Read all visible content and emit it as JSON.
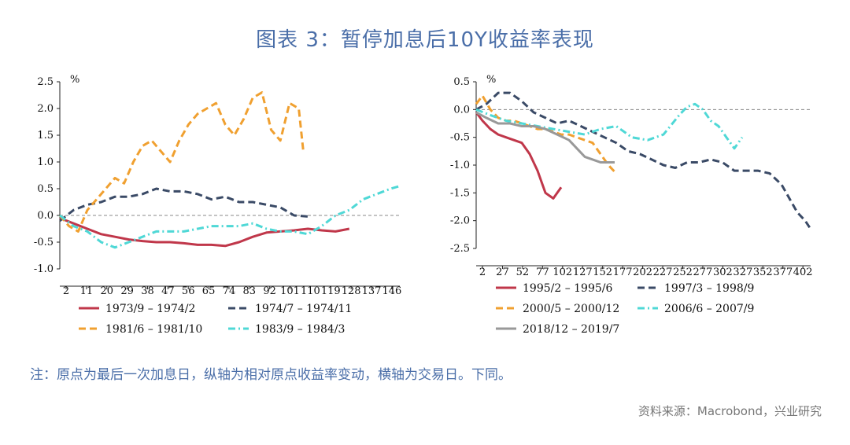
{
  "title": "图表 3：暂停加息后10Y收益率表现",
  "note": "注：原点为最后一次加息日，纵轴为相对原点收益率变动，横轴为交易日。下同。",
  "source": "资料来源：Macrobond，兴业研究",
  "colors": {
    "title": "#4a6ea8",
    "red": "#c0374a",
    "navy": "#3a4a66",
    "orange": "#f0a030",
    "cyan": "#4fd8d6",
    "gray": "#999999"
  },
  "chart_data": [
    {
      "type": "line",
      "unit": "%",
      "ylim": [
        -1.0,
        2.5
      ],
      "yticks": [
        "2.5",
        "2.0",
        "1.5",
        "1.0",
        "0.5",
        "0.0",
        "-0.5",
        "-1.0"
      ],
      "xticks": [
        "2",
        "11",
        "20",
        "29",
        "38",
        "47",
        "56",
        "65",
        "74",
        "83",
        "92",
        "101",
        "110",
        "119",
        "128",
        "137",
        "146"
      ],
      "xlim": [
        2,
        150
      ],
      "legend_position": "bottom",
      "series": [
        {
          "name": "1973/9 – 1974/2",
          "color": "#c0374a",
          "dash": "solid",
          "x": [
            2,
            8,
            14,
            20,
            26,
            32,
            38,
            44,
            50,
            56,
            62,
            68,
            74,
            80,
            86,
            92,
            98,
            104,
            110,
            116,
            122,
            128
          ],
          "y": [
            -0.05,
            -0.15,
            -0.25,
            -0.35,
            -0.4,
            -0.45,
            -0.48,
            -0.5,
            -0.5,
            -0.52,
            -0.55,
            -0.55,
            -0.57,
            -0.5,
            -0.4,
            -0.32,
            -0.3,
            -0.28,
            -0.25,
            -0.28,
            -0.3,
            -0.25
          ]
        },
        {
          "name": "1974/7 – 1974/11",
          "color": "#3a4a66",
          "dash": "dashed",
          "x": [
            2,
            8,
            14,
            20,
            26,
            32,
            38,
            44,
            50,
            56,
            62,
            68,
            74,
            80,
            86,
            92,
            98,
            104,
            110
          ],
          "y": [
            -0.1,
            0.1,
            0.2,
            0.25,
            0.35,
            0.35,
            0.4,
            0.5,
            0.45,
            0.45,
            0.4,
            0.3,
            0.35,
            0.25,
            0.25,
            0.2,
            0.15,
            0.0,
            -0.02
          ]
        },
        {
          "name": "1981/6 – 1981/10",
          "color": "#f0a030",
          "dash": "dashed",
          "x": [
            2,
            6,
            10,
            14,
            18,
            22,
            26,
            30,
            34,
            38,
            42,
            46,
            50,
            54,
            58,
            62,
            66,
            70,
            74,
            78,
            82,
            86,
            90,
            94,
            98,
            102,
            106,
            108
          ],
          "y": [
            0.0,
            -0.2,
            -0.3,
            0.1,
            0.3,
            0.5,
            0.7,
            0.6,
            1.0,
            1.3,
            1.4,
            1.2,
            1.0,
            1.4,
            1.7,
            1.9,
            2.0,
            2.1,
            1.7,
            1.5,
            1.8,
            2.2,
            2.3,
            1.6,
            1.4,
            2.1,
            2.0,
            1.2
          ]
        },
        {
          "name": "1983/9 – 1984/3",
          "color": "#4fd8d6",
          "dash": "dashdot",
          "x": [
            2,
            8,
            14,
            20,
            26,
            32,
            38,
            44,
            50,
            56,
            62,
            68,
            74,
            80,
            86,
            92,
            98,
            104,
            110,
            116,
            122,
            128,
            134,
            140,
            146,
            150
          ],
          "y": [
            0.0,
            -0.2,
            -0.3,
            -0.5,
            -0.6,
            -0.5,
            -0.4,
            -0.3,
            -0.3,
            -0.3,
            -0.25,
            -0.2,
            -0.2,
            -0.2,
            -0.15,
            -0.25,
            -0.3,
            -0.3,
            -0.35,
            -0.2,
            0.0,
            0.1,
            0.3,
            0.4,
            0.5,
            0.55
          ]
        }
      ]
    },
    {
      "type": "line",
      "unit": "%",
      "ylim": [
        -2.5,
        0.5
      ],
      "yticks": [
        "0.5",
        "0.0",
        "-0.5",
        "-1.0",
        "-1.5",
        "-2.0",
        "-2.5"
      ],
      "xticks": [
        "2",
        "27",
        "52",
        "77",
        "102",
        "127",
        "152",
        "177",
        "202",
        "227",
        "252",
        "277",
        "302",
        "327",
        "352",
        "377",
        "402"
      ],
      "xlim": [
        2,
        427
      ],
      "legend_position": "bottom",
      "series": [
        {
          "name": "1995/2 – 1995/6",
          "color": "#c0374a",
          "dash": "solid",
          "x": [
            2,
            10,
            20,
            30,
            40,
            50,
            60,
            70,
            80,
            85,
            90,
            95,
            100,
            105,
            110
          ],
          "y": [
            -0.05,
            -0.2,
            -0.35,
            -0.45,
            -0.5,
            -0.55,
            -0.6,
            -0.8,
            -1.1,
            -1.3,
            -1.5,
            -1.55,
            -1.6,
            -1.5,
            -1.4
          ]
        },
        {
          "name": "1997/3 – 1998/9",
          "color": "#3a4a66",
          "dash": "dashed",
          "x": [
            2,
            15,
            30,
            45,
            60,
            75,
            90,
            105,
            120,
            135,
            150,
            165,
            180,
            195,
            210,
            225,
            240,
            255,
            270,
            285,
            300,
            315,
            330,
            345,
            360,
            375,
            390,
            400,
            410,
            420,
            427
          ],
          "y": [
            0.0,
            0.1,
            0.3,
            0.3,
            0.15,
            -0.05,
            -0.15,
            -0.25,
            -0.2,
            -0.3,
            -0.4,
            -0.5,
            -0.6,
            -0.75,
            -0.8,
            -0.9,
            -1.0,
            -1.05,
            -0.95,
            -0.95,
            -0.9,
            -0.95,
            -1.1,
            -1.1,
            -1.1,
            -1.15,
            -1.35,
            -1.6,
            -1.85,
            -2.0,
            -2.15
          ]
        },
        {
          "name": "2000/5 – 2000/12",
          "color": "#f0a030",
          "dash": "dashed",
          "x": [
            2,
            10,
            20,
            30,
            40,
            50,
            60,
            70,
            80,
            90,
            100,
            110,
            120,
            130,
            140,
            150,
            160,
            170,
            180
          ],
          "y": [
            0.1,
            0.25,
            0.0,
            -0.15,
            -0.2,
            -0.2,
            -0.25,
            -0.3,
            -0.35,
            -0.35,
            -0.4,
            -0.45,
            -0.45,
            -0.5,
            -0.55,
            -0.6,
            -0.8,
            -1.0,
            -1.15
          ]
        },
        {
          "name": "2006/6 – 2007/9",
          "color": "#4fd8d6",
          "dash": "dashdot",
          "x": [
            2,
            20,
            40,
            60,
            80,
            100,
            120,
            140,
            160,
            180,
            200,
            220,
            240,
            260,
            270,
            280,
            290,
            300,
            310,
            320,
            330,
            340
          ],
          "y": [
            0.0,
            -0.1,
            -0.2,
            -0.25,
            -0.3,
            -0.35,
            -0.4,
            -0.45,
            -0.35,
            -0.3,
            -0.5,
            -0.55,
            -0.45,
            -0.1,
            0.05,
            0.1,
            0.0,
            -0.2,
            -0.3,
            -0.5,
            -0.7,
            -0.5
          ]
        },
        {
          "name": "2018/12 – 2019/7",
          "color": "#999999",
          "dash": "solid",
          "x": [
            2,
            15,
            30,
            45,
            60,
            75,
            90,
            105,
            120,
            130,
            140,
            150,
            160,
            170,
            178
          ],
          "y": [
            -0.05,
            -0.15,
            -0.25,
            -0.25,
            -0.3,
            -0.3,
            -0.35,
            -0.45,
            -0.55,
            -0.7,
            -0.85,
            -0.9,
            -0.95,
            -0.95,
            -0.95
          ]
        }
      ]
    }
  ]
}
